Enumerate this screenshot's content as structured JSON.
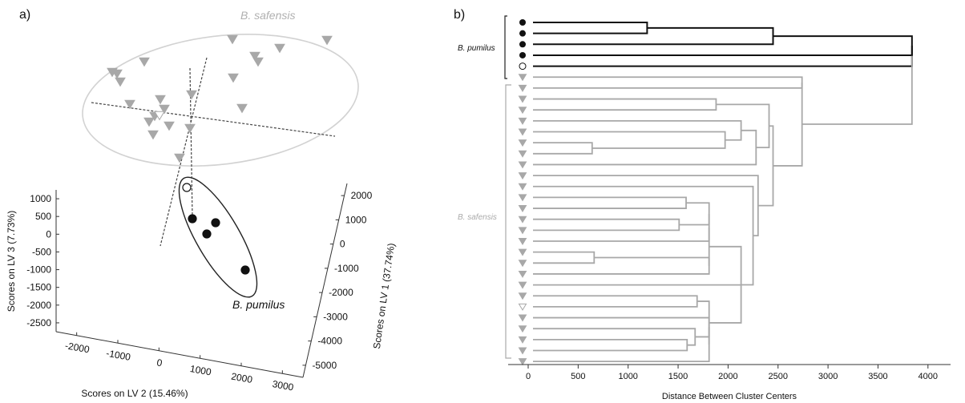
{
  "figure": {
    "panel_a_label": "a)",
    "panel_b_label": "b)"
  },
  "colors": {
    "safensis": "#a8a8a8",
    "pumilus": "#111111",
    "ellipse_safensis": "#d2d2d2",
    "axes": "#333333"
  },
  "chart_data": [
    {
      "type": "scatter",
      "projection": "3d",
      "title": "",
      "xlabel": "Scores on LV 2 (15.46%)",
      "ylabel": "Scores on LV 3 (7.73%)",
      "zlabel": "Scores on LV 1 (37.74%)",
      "lv2_ticks": [
        "-2000",
        "-1000",
        "0",
        "1000",
        "2000",
        "3000"
      ],
      "lv3_ticks": [
        "1000",
        "500",
        "0",
        "-500",
        "-1000",
        "-1500",
        "-2000",
        "-2500"
      ],
      "lv1_ticks": [
        "2000",
        "1000",
        "0",
        "-1000",
        "-2000",
        "-3000",
        "-4000",
        "-5000"
      ],
      "lv2_range": [
        -2500,
        3500
      ],
      "lv3_range": [
        -2750,
        1250
      ],
      "lv1_range": [
        -5500,
        2500
      ],
      "group_labels": [
        "B. safensis",
        "B. pumilus"
      ],
      "series": [
        {
          "name": "B. safensis",
          "marker": "triangle-down",
          "points_2d": [
            [
              140,
              90
            ],
            [
              146,
              92
            ],
            [
              150,
              102
            ],
            [
              180,
              77
            ],
            [
              162,
              130
            ],
            [
              200,
              124
            ],
            [
              205,
              136
            ],
            [
              186,
              152
            ],
            [
              193,
              145
            ],
            [
              211,
              157
            ],
            [
              191,
              168
            ],
            [
              237,
              160
            ],
            [
              239,
              118
            ],
            [
              224,
              197
            ],
            [
              290,
              49
            ],
            [
              318,
              70
            ],
            [
              322,
              77
            ],
            [
              349,
              60
            ],
            [
              291,
              97
            ],
            [
              302,
              135
            ],
            [
              408,
              50
            ]
          ],
          "hollow_2d": [
            [
              199,
              144
            ]
          ]
        },
        {
          "name": "B. pumilus",
          "marker": "circle",
          "points_2d": [
            [
              240,
              273
            ],
            [
              269,
              278
            ],
            [
              258,
              292
            ],
            [
              306,
              337
            ]
          ],
          "hollow_2d": [
            [
              233,
              234
            ]
          ]
        }
      ]
    },
    {
      "type": "dendrogram",
      "title": "",
      "xlabel": "Distance Between Cluster Centers",
      "x_ticks": [
        "0",
        "500",
        "1000",
        "1500",
        "2000",
        "2500",
        "3000",
        "3500",
        "4000"
      ],
      "xlim": [
        -150,
        4200
      ],
      "group_labels": [
        "B. pumilus",
        "B. safensis"
      ],
      "leaf_markers": [
        "dot",
        "dot",
        "dot",
        "dot",
        "open-circle",
        "tri",
        "tri",
        "tri",
        "tri",
        "tri",
        "tri",
        "tri",
        "tri",
        "tri",
        "tri",
        "tri",
        "tri",
        "tri",
        "tri",
        "tri",
        "tri",
        "tri",
        "tri",
        "tri",
        "tri",
        "tri",
        "open-tri",
        "tri",
        "tri",
        "tri",
        "tri",
        "tri"
      ],
      "merges": [
        {
          "a": "L0",
          "b": "L1",
          "h": 1190
        },
        {
          "a": "M0",
          "b": "L2",
          "h": 2450
        },
        {
          "a": "M1",
          "b": "L3",
          "h": 3840
        },
        {
          "a": "M2",
          "b": "L4",
          "h": 3840
        },
        {
          "a": "L5",
          "b": "L6",
          "h": 2740
        },
        {
          "a": "L7",
          "b": "L8",
          "h": 1880
        },
        {
          "a": "L11",
          "b": "L12",
          "h": 640
        },
        {
          "a": "L10",
          "b": "M6",
          "h": 1970
        },
        {
          "a": "L9",
          "b": "M7",
          "h": 2130
        },
        {
          "a": "M8",
          "b": "L13",
          "h": 2280
        },
        {
          "a": "M5",
          "b": "M9",
          "h": 2410
        },
        {
          "a": "L16",
          "b": "L17",
          "h": 1580
        },
        {
          "a": "L18",
          "b": "L19",
          "h": 1510
        },
        {
          "a": "M11",
          "b": "M12",
          "h": 1810
        },
        {
          "a": "M13",
          "b": "L20",
          "h": 1810
        },
        {
          "a": "L21",
          "b": "L22",
          "h": 660
        },
        {
          "a": "M15",
          "b": "L23",
          "h": 1810
        },
        {
          "a": "M14",
          "b": "M16",
          "h": 1810
        },
        {
          "a": "L25",
          "b": "L26",
          "h": 1690
        },
        {
          "a": "L29",
          "b": "L30",
          "h": 1590
        },
        {
          "a": "L28",
          "b": "M19",
          "h": 1670
        },
        {
          "a": "L27",
          "b": "M20",
          "h": 1810
        },
        {
          "a": "L31",
          "b": "M21",
          "h": 1810
        },
        {
          "a": "M18",
          "b": "M22",
          "h": 1810
        },
        {
          "a": "M17",
          "b": "M23",
          "h": 2130
        },
        {
          "a": "L24",
          "b": "M24",
          "h": 2130
        },
        {
          "a": "L15",
          "b": "M25",
          "h": 2250
        },
        {
          "a": "L14",
          "b": "M26",
          "h": 2300
        },
        {
          "a": "M10",
          "b": "M27",
          "h": 2450
        },
        {
          "a": "M4",
          "b": "M28",
          "h": 2740
        },
        {
          "a": "M3",
          "b": "M29",
          "h": 3840
        }
      ]
    }
  ]
}
